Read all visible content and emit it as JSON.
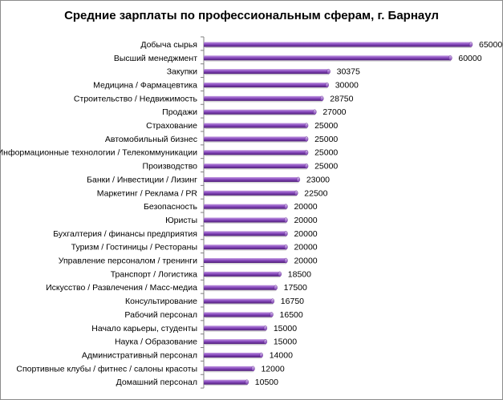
{
  "chart_data": {
    "type": "bar",
    "orientation": "horizontal",
    "title": "Средние зарплаты по профессиональным сферам, г. Барнаул",
    "xlabel": "",
    "ylabel": "",
    "xlim": [
      0,
      70000
    ],
    "grid": false,
    "legend": "none",
    "bar_color": "#7030a0",
    "categories": [
      "Добыча сырья",
      "Высший менеджмент",
      "Закупки",
      "Медицина / Фармацевтика",
      "Строительство / Недвижимость",
      "Продажи",
      "Страхование",
      "Автомобильный бизнес",
      "Информационные технологии / Телекоммуникации",
      "Производство",
      "Банки / Инвестиции / Лизинг",
      "Маркетинг / Реклама / PR",
      "Безопасность",
      "Юристы",
      "Бухгалтерия / финансы предприятия",
      "Туризм / Гостиницы / Рестораны",
      "Управление персоналом / тренинги",
      "Транспорт / Логистика",
      "Искусство / Развлечения / Масс-медиа",
      "Консультирование",
      "Рабочий персонал",
      "Начало карьеры, студенты",
      "Наука / Образование",
      "Административный персонал",
      "Спортивные клубы / фитнес / салоны красоты",
      "Домашний персонал"
    ],
    "values": [
      65000,
      60000,
      30375,
      30000,
      28750,
      27000,
      25000,
      25000,
      25000,
      25000,
      23000,
      22500,
      20000,
      20000,
      20000,
      20000,
      20000,
      18500,
      17500,
      16750,
      16500,
      15000,
      15000,
      14000,
      12000,
      10500
    ],
    "value_labels": [
      "65000",
      "60000",
      "30375",
      "30000",
      "28750",
      "27000",
      "25000",
      "25000",
      "25000",
      "25000",
      "23000",
      "22500",
      "20000",
      "20000",
      "20000",
      "20000",
      "20000",
      "18500",
      "17500",
      "16750",
      "16500",
      "15000",
      "15000",
      "14000",
      "12000",
      "10500"
    ]
  }
}
